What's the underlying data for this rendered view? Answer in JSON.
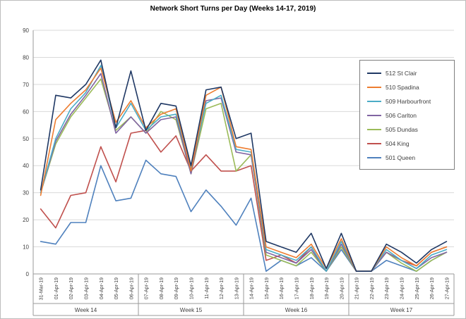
{
  "title": "Network Short Turns per Day (Weeks 14-17, 2019)",
  "chart_data": {
    "type": "line",
    "title": "Network Short Turns per Day (Weeks 14-17, 2019)",
    "xlabel": "",
    "ylabel": "",
    "ylim": [
      0,
      90
    ],
    "yticks": [
      0,
      10,
      20,
      30,
      40,
      50,
      60,
      70,
      80,
      90
    ],
    "grid": true,
    "legend_position": "right-overlay",
    "x": [
      "31-Mar-19",
      "01-Apr-19",
      "02-Apr-19",
      "03-Apr-19",
      "04-Apr-19",
      "05-Apr-19",
      "06-Apr-19",
      "07-Apr-19",
      "08-Apr-19",
      "09-Apr-19",
      "10-Apr-19",
      "11-Apr-19",
      "12-Apr-19",
      "13-Apr-19",
      "14-Apr-19",
      "15-Apr-19",
      "16-Apr-19",
      "17-Apr-19",
      "18-Apr-19",
      "19-Apr-19",
      "20-Apr-19",
      "21-Apr-19",
      "22-Apr-19",
      "23-Apr-19",
      "24-Apr-19",
      "25-Apr-19",
      "26-Apr-19",
      "27-Apr-19"
    ],
    "week_groups": [
      {
        "label": "Week 14",
        "start": 0,
        "end": 6
      },
      {
        "label": "Week 15",
        "start": 7,
        "end": 13
      },
      {
        "label": "Week 16",
        "start": 14,
        "end": 20
      },
      {
        "label": "Week 17",
        "start": 21,
        "end": 27
      }
    ],
    "series": [
      {
        "name": "512 St Clair",
        "color": "#1F3864",
        "values": [
          31,
          66,
          65,
          70,
          79,
          54,
          75,
          53,
          63,
          62,
          40,
          68,
          69,
          50,
          52,
          12,
          10,
          8,
          15,
          2,
          15,
          1,
          1,
          11,
          8,
          4,
          9,
          12
        ]
      },
      {
        "name": "510 Spadina",
        "color": "#ED7D31",
        "values": [
          29,
          57,
          63,
          68,
          76,
          56,
          64,
          54,
          59,
          61,
          38,
          66,
          69,
          47,
          46,
          10,
          8,
          6,
          11,
          2,
          13,
          1,
          1,
          10,
          6,
          3,
          8,
          10
        ]
      },
      {
        "name": "509 Harbourfront",
        "color": "#4BACC6",
        "values": [
          30,
          50,
          61,
          67,
          77,
          54,
          63,
          53,
          58,
          59,
          39,
          63,
          66,
          46,
          45,
          9,
          7,
          5,
          10,
          1,
          12,
          1,
          1,
          9,
          5,
          2,
          7,
          9
        ]
      },
      {
        "name": "506 Carlton",
        "color": "#8064A2",
        "values": [
          30,
          49,
          59,
          66,
          74,
          52,
          58,
          52,
          57,
          58,
          37,
          64,
          65,
          45,
          44,
          8,
          6,
          4,
          9,
          1,
          11,
          1,
          1,
          8,
          5,
          2,
          6,
          8
        ]
      },
      {
        "name": "505 Dundas",
        "color": "#9BBB59",
        "values": [
          30,
          48,
          58,
          65,
          72,
          53,
          58,
          52,
          60,
          57,
          37,
          61,
          63,
          38,
          44,
          7,
          5,
          3,
          8,
          1,
          10,
          1,
          1,
          8,
          4,
          1,
          5,
          8
        ]
      },
      {
        "name": "504 King",
        "color": "#C0504D",
        "values": [
          24,
          17,
          29,
          30,
          47,
          34,
          52,
          53,
          45,
          51,
          38,
          44,
          38,
          38,
          40,
          5,
          7,
          4,
          10,
          1,
          10,
          1,
          1,
          8,
          5,
          3,
          8,
          10
        ]
      },
      {
        "name": "501 Queen",
        "color": "#4F81BD",
        "values": [
          12,
          11,
          19,
          19,
          40,
          27,
          28,
          42,
          37,
          36,
          23,
          31,
          25,
          18,
          28,
          1,
          5,
          3,
          6,
          1,
          9,
          1,
          1,
          5,
          3,
          1,
          5,
          8
        ]
      }
    ],
    "colors": {
      "gridline": "#d9d9d9",
      "axis_line": "#9a9a9a",
      "tick_text": "#404040"
    }
  }
}
